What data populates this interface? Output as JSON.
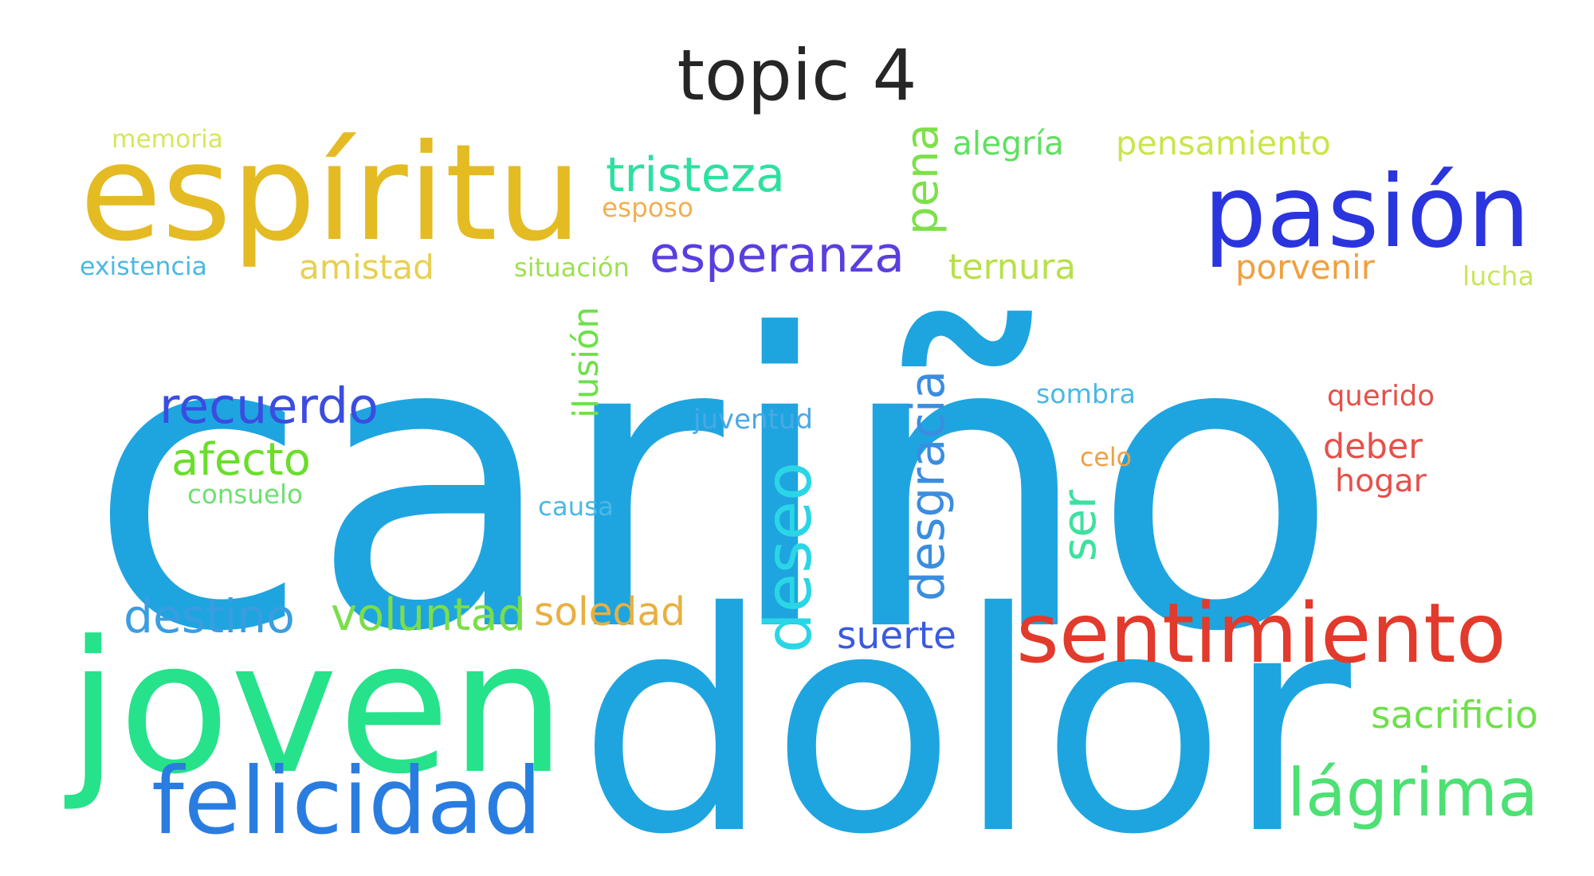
{
  "title": "topic 4",
  "words": [
    {
      "text": "cariño",
      "color": "#1ea5e0"
    },
    {
      "text": "dolor",
      "color": "#1ea5e0"
    },
    {
      "text": "joven",
      "color": "#26e28a"
    },
    {
      "text": "espíritu",
      "color": "#e4bb23"
    },
    {
      "text": "pasión",
      "color": "#2a35de"
    },
    {
      "text": "felicidad",
      "color": "#2a7de0"
    },
    {
      "text": "sentimiento",
      "color": "#e23a2c"
    },
    {
      "text": "lágrima",
      "color": "#4de073"
    },
    {
      "text": "tristeza",
      "color": "#2ee0a0"
    },
    {
      "text": "esperanza",
      "color": "#5a3ee0"
    },
    {
      "text": "recuerdo",
      "color": "#3a4de0"
    },
    {
      "text": "deseo",
      "color": "#2ad6e6"
    },
    {
      "text": "desgracia",
      "color": "#3a8de0"
    },
    {
      "text": "afecto",
      "color": "#6ade2a"
    },
    {
      "text": "voluntad",
      "color": "#7ade4a"
    },
    {
      "text": "soledad",
      "color": "#e8b040"
    },
    {
      "text": "destino",
      "color": "#3a9de0"
    },
    {
      "text": "suerte",
      "color": "#3a5ae0"
    },
    {
      "text": "sacrificio",
      "color": "#6ee04a"
    },
    {
      "text": "pena",
      "color": "#7de04a"
    },
    {
      "text": "alegría",
      "color": "#5ee060"
    },
    {
      "text": "pensamiento",
      "color": "#c8e64a"
    },
    {
      "text": "ternura",
      "color": "#b8e04a"
    },
    {
      "text": "porvenir",
      "color": "#f0a040"
    },
    {
      "text": "amistad",
      "color": "#e6d050"
    },
    {
      "text": "ilusión",
      "color": "#6ee04a"
    },
    {
      "text": "ser",
      "color": "#3ee0a0"
    },
    {
      "text": "memoria",
      "color": "#d8e65a"
    },
    {
      "text": "esposo",
      "color": "#f0b050"
    },
    {
      "text": "existencia",
      "color": "#4ab8e6"
    },
    {
      "text": "situación",
      "color": "#9ee050"
    },
    {
      "text": "lucha",
      "color": "#c8e65a"
    },
    {
      "text": "juventud",
      "color": "#4aa8e6"
    },
    {
      "text": "sombra",
      "color": "#4ab8e6"
    },
    {
      "text": "querido",
      "color": "#e6504a"
    },
    {
      "text": "deber",
      "color": "#e6504a"
    },
    {
      "text": "hogar",
      "color": "#e6504a"
    },
    {
      "text": "celo",
      "color": "#f0a040"
    },
    {
      "text": "consuelo",
      "color": "#6ee070"
    },
    {
      "text": "causa",
      "color": "#4ab8e6"
    }
  ]
}
